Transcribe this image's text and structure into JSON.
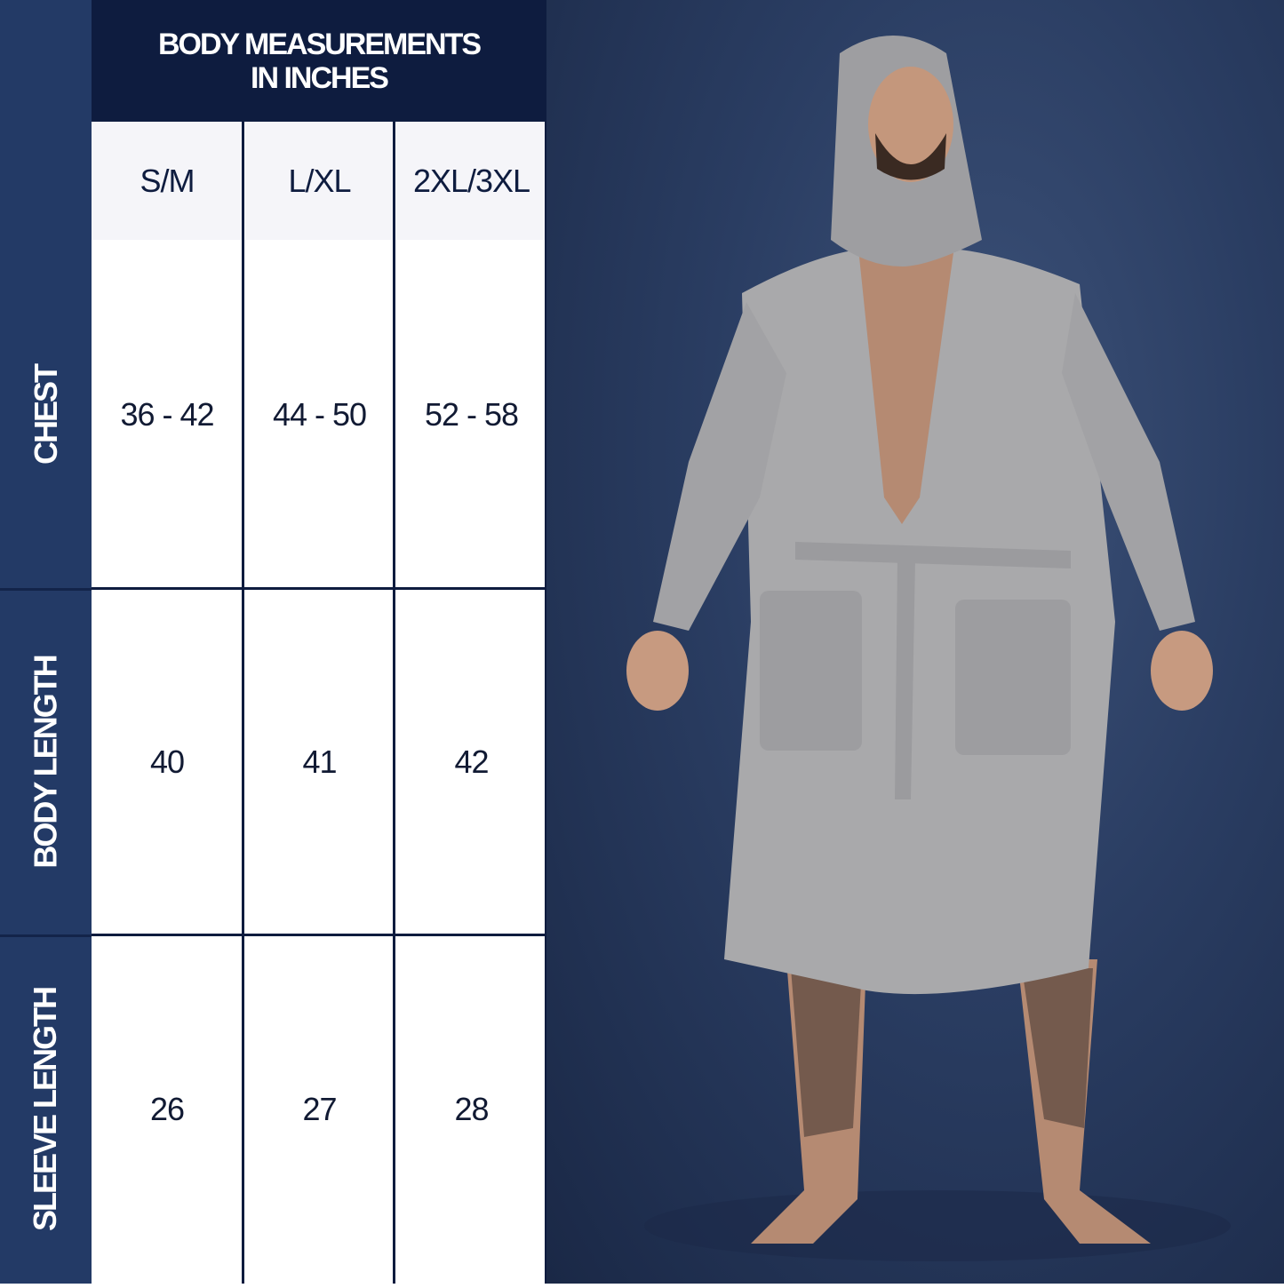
{
  "table": {
    "title_line1": "BODY MEASUREMENTS",
    "title_line2": "IN INCHES",
    "columns": [
      "S/M",
      "L/XL",
      "2XL/3XL"
    ],
    "rows": [
      {
        "label": "CHEST",
        "values": [
          "36 - 42",
          "44 - 50",
          "52 - 58"
        ]
      },
      {
        "label": "BODY LENGTH",
        "values": [
          "40",
          "41",
          "42"
        ]
      },
      {
        "label": "SLEEVE LENGTH",
        "values": [
          "26",
          "27",
          "28"
        ]
      }
    ]
  },
  "colors": {
    "sidebar": "#233a66",
    "header": "#0e1c3f",
    "header_row": "#f5f5f9",
    "robe": "#a9a9ab"
  }
}
